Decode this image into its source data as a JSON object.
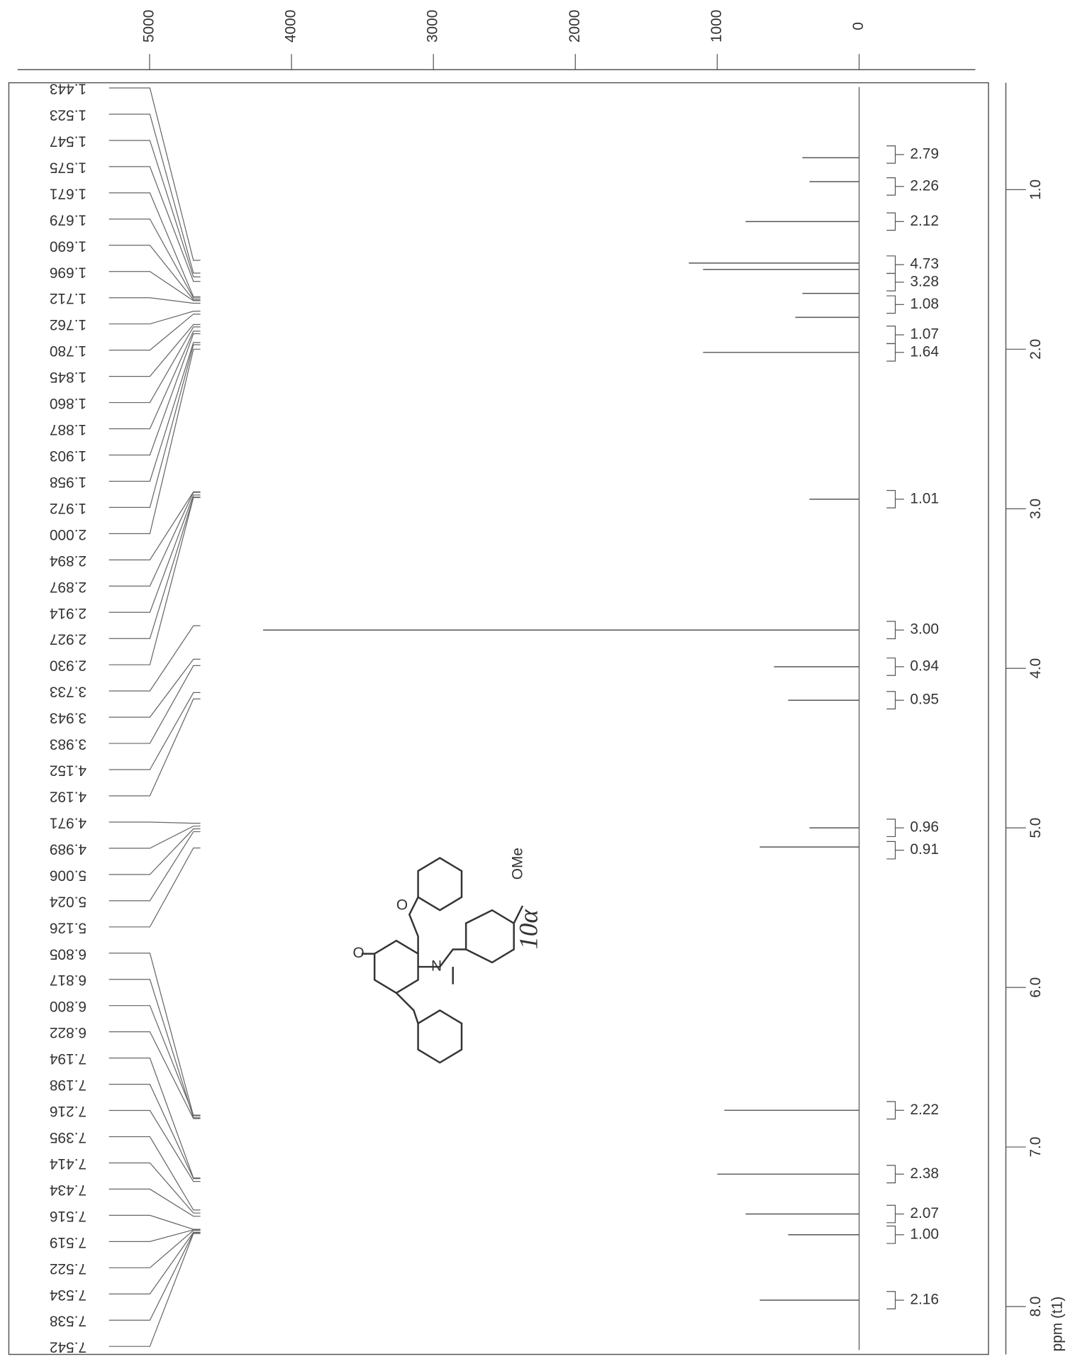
{
  "chart_data": {
    "type": "nmr",
    "xlabel": "ppm (t1)",
    "ilim": [
      5900,
      -850
    ],
    "iticks": [
      5000,
      4000,
      3000,
      2000,
      1000,
      0
    ],
    "ylim": [
      0.33,
      8.3
    ],
    "yticks": [
      {
        "value": 1,
        "label": "1.0"
      },
      {
        "value": 2,
        "label": "2.0"
      },
      {
        "value": 3,
        "label": "3.0"
      },
      {
        "value": 4,
        "label": "4.0"
      },
      {
        "value": 5,
        "label": "5.0"
      },
      {
        "value": 6,
        "label": "6.0"
      },
      {
        "value": 7,
        "label": "7.0"
      },
      {
        "value": 8,
        "label": "8.0"
      }
    ],
    "color": "#555555",
    "peaks": {
      "x": [
        0.8,
        0.95,
        1.2,
        1.46,
        1.5,
        1.65,
        1.8,
        2.02,
        2.94,
        3.76,
        3.99,
        4.2,
        5.0,
        5.12,
        6.77,
        7.17,
        7.42,
        7.55,
        7.96
      ],
      "values": [
        400,
        350,
        800,
        1200,
        1100,
        400,
        450,
        1100,
        350,
        4200,
        600,
        500,
        350,
        700,
        950,
        1000,
        800,
        500,
        700
      ]
    },
    "integrals": {
      "x": [
        0.78,
        0.98,
        1.2,
        1.47,
        1.58,
        1.72,
        1.91,
        2.02,
        2.94,
        3.76,
        3.99,
        4.2,
        5.0,
        5.14,
        6.77,
        7.17,
        7.42,
        7.55,
        7.96
      ],
      "values": [
        2.79,
        2.26,
        2.12,
        4.73,
        3.28,
        1.08,
        1.07,
        1.64,
        1.01,
        3,
        0.94,
        0.95,
        0.96,
        0.91,
        2.22,
        2.38,
        2.07,
        1,
        2.16
      ],
      "value_labels": [
        "2.79",
        "2.26",
        "2.12",
        "4.73",
        "3.28",
        "1.08",
        "1.07",
        "1.64",
        "1.01",
        "3.00",
        "0.94",
        "0.95",
        "0.96",
        "0.91",
        "2.22",
        "2.38",
        "2.07",
        "1.00",
        "2.16"
      ]
    },
    "peak_labels": [
      1.443,
      1.523,
      1.547,
      1.575,
      1.671,
      1.679,
      {
        "value": 1.69,
        "label": "1.690"
      },
      1.696,
      1.712,
      1.762,
      {
        "value": 1.78,
        "label": "1.780"
      },
      1.845,
      {
        "value": 1.86,
        "label": "1.860"
      },
      1.887,
      1.903,
      1.958,
      1.972,
      {
        "value": 2,
        "label": "2.000"
      },
      2.894,
      2.897,
      2.914,
      2.927,
      {
        "value": 2.93,
        "label": "2.930"
      },
      3.733,
      3.943,
      3.983,
      4.152,
      4.192,
      4.971,
      4.989,
      5.006,
      5.024,
      5.126,
      6.805,
      6.817,
      {
        "value": 6.8,
        "label": "6.800"
      },
      6.822,
      7.194,
      7.198,
      7.216,
      7.395,
      7.414,
      7.434,
      7.516,
      7.519,
      7.522,
      7.534,
      7.538,
      7.542
    ]
  },
  "structure": {
    "labels": [
      "O",
      "O",
      "N",
      "OMe",
      "10α"
    ]
  }
}
